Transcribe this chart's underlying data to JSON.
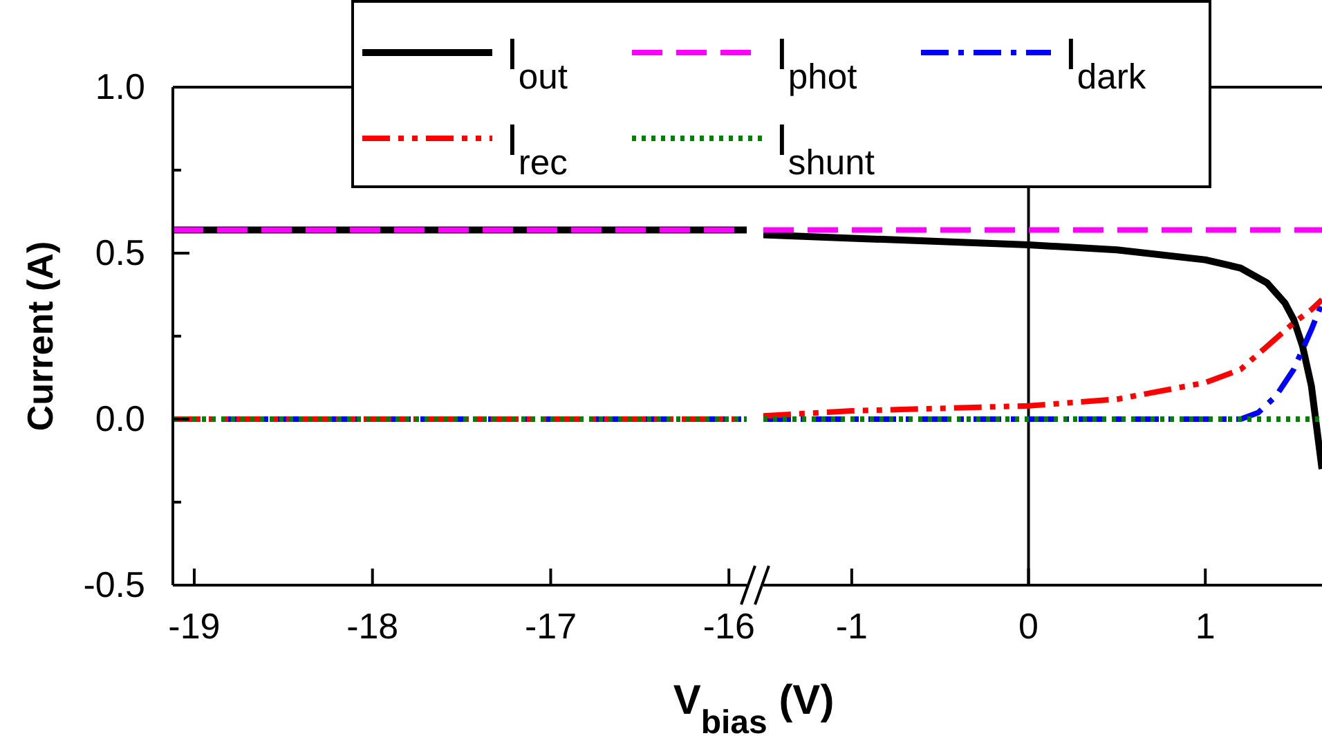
{
  "chart_data": [
    {
      "type": "line",
      "xlabel": "V$_{bias}$ (V)",
      "ylabel": "Current (A)",
      "xlim": [
        -19.12,
        -15.9
      ],
      "ylim": [
        -0.5,
        1.0
      ],
      "xticks": [
        -19,
        -18,
        -17,
        -16
      ],
      "yticks": [
        {
          "value": -0.5,
          "label": "-0.5"
        },
        {
          "value": -0.25,
          "label": null
        },
        {
          "value": 0,
          "label": "0.0"
        },
        {
          "value": 0.25,
          "label": null
        },
        {
          "value": 0.5,
          "label": "0.5"
        },
        {
          "value": 0.75,
          "label": null
        },
        {
          "value": 1.0,
          "label": "1.0"
        }
      ],
      "legend": "top",
      "series": [
        {
          "name": "I$_{out}$",
          "color": "#000000",
          "line_style": "solid",
          "x": [
            -19.12,
            -15.9
          ],
          "values": [
            0.57,
            0.57
          ]
        },
        {
          "name": "I$_{phot}$",
          "color": "#ff00ff",
          "line_style": "dashed",
          "x": [
            -19.12,
            -15.9
          ],
          "values": [
            0.57,
            0.57
          ]
        },
        {
          "name": "I$_{dark}$",
          "color": "#0000ff",
          "line_style": "dashdot",
          "x": [
            -19.12,
            -15.9
          ],
          "values": [
            0,
            0
          ]
        },
        {
          "name": "I$_{rec}$",
          "color": "#ff0000",
          "line_style": "dashdotdot",
          "x": [
            -19.12,
            -15.9
          ],
          "values": [
            0,
            0
          ]
        },
        {
          "name": "I$_{shunt}$",
          "color": "#008000",
          "line_style": "dotted",
          "x": [
            -19.12,
            -15.9
          ],
          "values": [
            0,
            0
          ]
        }
      ]
    },
    {
      "type": "line",
      "xlim": [
        -1.5,
        1.66
      ],
      "ylim": [
        -0.5,
        1.0
      ],
      "xticks": [
        -1,
        0,
        1
      ],
      "tick_labels": "x",
      "ref_lines": [
        {
          "axis": "x",
          "value": 0,
          "color": "#000000"
        }
      ],
      "series": [
        {
          "color": "#000000",
          "line_style": "solid",
          "x": [
            -1.5,
            -1,
            0,
            0.5,
            1,
            1.2,
            1.35,
            1.45,
            1.5,
            1.55,
            1.6,
            1.66
          ],
          "values": [
            0.555,
            0.545,
            0.525,
            0.51,
            0.48,
            0.455,
            0.41,
            0.35,
            0.3,
            0.22,
            0.1,
            -0.15
          ]
        },
        {
          "color": "#ff00ff",
          "line_style": "dashed",
          "x": [
            -1.5,
            1.66
          ],
          "values": [
            0.57,
            0.57
          ]
        },
        {
          "color": "#0000ff",
          "line_style": "dashdot",
          "x": [
            -1.5,
            1.2,
            1.3,
            1.4,
            1.5,
            1.6,
            1.66
          ],
          "values": [
            0,
            0,
            0.02,
            0.07,
            0.15,
            0.27,
            0.35
          ]
        },
        {
          "color": "#ff0000",
          "line_style": "dashdotdot",
          "x": [
            -1.5,
            -1,
            0,
            0.5,
            1,
            1.2,
            1.35,
            1.5,
            1.6,
            1.66
          ],
          "values": [
            0.01,
            0.025,
            0.04,
            0.06,
            0.11,
            0.15,
            0.22,
            0.29,
            0.33,
            0.36
          ]
        },
        {
          "color": "#008000",
          "line_style": "dotted",
          "x": [
            -1.5,
            1.66
          ],
          "values": [
            0,
            0
          ]
        }
      ]
    }
  ]
}
